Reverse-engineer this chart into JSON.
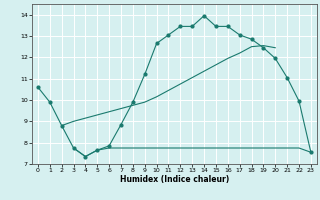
{
  "xlabel": "Humidex (Indice chaleur)",
  "ylabel": "",
  "bg_color": "#d6f0f0",
  "grid_color": "#b8dada",
  "line_color": "#1a7a6e",
  "xlim": [
    -0.5,
    23.5
  ],
  "ylim": [
    7.0,
    14.5
  ],
  "yticks": [
    7,
    8,
    9,
    10,
    11,
    12,
    13,
    14
  ],
  "xticks": [
    0,
    1,
    2,
    3,
    4,
    5,
    6,
    7,
    8,
    9,
    10,
    11,
    12,
    13,
    14,
    15,
    16,
    17,
    18,
    19,
    20,
    21,
    22,
    23
  ],
  "line1_x": [
    0,
    1,
    2,
    3,
    4,
    5,
    6,
    7,
    8,
    9,
    10,
    11,
    12,
    13,
    14,
    15,
    16,
    17,
    18,
    19,
    20,
    21,
    22,
    23
  ],
  "line1_y": [
    10.6,
    9.9,
    8.8,
    7.75,
    7.35,
    7.65,
    7.85,
    8.85,
    9.9,
    11.2,
    12.65,
    13.05,
    13.45,
    13.45,
    13.95,
    13.45,
    13.45,
    13.05,
    12.85,
    12.45,
    11.95,
    11.05,
    9.95,
    7.55
  ],
  "line2_x": [
    3,
    4,
    5,
    6,
    7,
    8,
    9,
    10,
    11,
    12,
    13,
    14,
    15,
    16,
    17,
    18,
    19,
    20,
    21,
    22,
    23
  ],
  "line2_y": [
    7.75,
    7.35,
    7.65,
    7.75,
    7.75,
    7.75,
    7.75,
    7.75,
    7.75,
    7.75,
    7.75,
    7.75,
    7.75,
    7.75,
    7.75,
    7.75,
    7.75,
    7.75,
    7.75,
    7.75,
    7.55
  ],
  "line3_x": [
    2,
    3,
    4,
    5,
    6,
    7,
    8,
    9,
    10,
    11,
    12,
    13,
    14,
    15,
    16,
    17,
    18,
    19,
    20
  ],
  "line3_y": [
    8.8,
    9.0,
    9.15,
    9.3,
    9.45,
    9.6,
    9.75,
    9.9,
    10.15,
    10.45,
    10.75,
    11.05,
    11.35,
    11.65,
    11.95,
    12.2,
    12.5,
    12.55,
    12.45
  ]
}
